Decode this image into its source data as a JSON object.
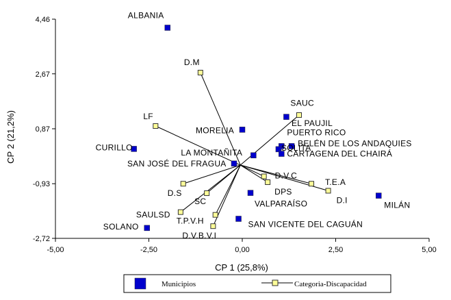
{
  "chart_data": {
    "type": "scatter",
    "title": "",
    "xlabel": "CP 1 (25,8%)",
    "ylabel": "CP 2 (21,2%)",
    "xlim": [
      -5.0,
      5.0
    ],
    "ylim": [
      -2.72,
      4.46
    ],
    "x_ticks": [
      "-5,00",
      "-2,50",
      "0,00",
      "2,50",
      "5,00"
    ],
    "y_ticks": [
      "4,46",
      "2,67",
      "0,87",
      "-0,93",
      "-2,72"
    ],
    "x_tick_values": [
      -5.0,
      -2.5,
      0.0,
      2.5,
      5.0
    ],
    "y_tick_values": [
      4.46,
      2.67,
      0.87,
      -0.93,
      -2.72
    ],
    "legend_position": "bottom",
    "colors": {
      "municipios": "#0000cc",
      "categoria": "#ffff99",
      "outline": "#333333"
    },
    "series": [
      {
        "name": "Municipios",
        "marker": "filled-square",
        "points": [
          {
            "label": "ALBANIA",
            "x": -2.0,
            "y": 4.18
          },
          {
            "label": "SAUC",
            "x": 1.18,
            "y": 1.26
          },
          {
            "label": "MORELIA",
            "x": 0.0,
            "y": 0.84
          },
          {
            "label": "CURILLO",
            "x": -2.9,
            "y": 0.21
          },
          {
            "label": "PUERTO RICO",
            "x": 1.05,
            "y": 0.3
          },
          {
            "label": "BELÉN DE LOS ANDAQUIES",
            "x": 1.32,
            "y": 0.3
          },
          {
            "label": "SOLITA",
            "x": 0.97,
            "y": 0.2
          },
          {
            "label": "CARTAGENA DEL CHAIRÁ",
            "x": 1.05,
            "y": 0.05
          },
          {
            "label": "LA MONTAÑITA",
            "x": 0.3,
            "y": 0.0
          },
          {
            "label": "SAN JOSÉ DEL FRAGUA",
            "x": -0.22,
            "y": -0.27
          },
          {
            "label": "VALPARAÍSO",
            "x": 0.22,
            "y": -1.23
          },
          {
            "label": "MILÁN",
            "x": 3.65,
            "y": -1.32
          },
          {
            "label": "SAN VICENTE DEL CAGUÁN",
            "x": -0.1,
            "y": -2.08
          },
          {
            "label": "SOLANO",
            "x": -2.55,
            "y": -2.38
          }
        ]
      },
      {
        "name": "Categoria-Discapacidad",
        "marker": "open-square-with-line",
        "origin": [
          -0.05,
          -0.32
        ],
        "points": [
          {
            "label": "D.M",
            "x": -1.12,
            "y": 2.71
          },
          {
            "label": "EL PAUJIL",
            "x": 1.52,
            "y": 1.32
          },
          {
            "label": "LF",
            "x": -2.32,
            "y": 0.96
          },
          {
            "label": "D.V.C",
            "x": 0.58,
            "y": -0.69
          },
          {
            "label": "DPS",
            "x": 0.68,
            "y": -0.88
          },
          {
            "label": "T.E.A",
            "x": 1.85,
            "y": -0.93
          },
          {
            "label": "D.I",
            "x": 2.3,
            "y": -1.16
          },
          {
            "label": "D.S",
            "x": -1.58,
            "y": -0.93
          },
          {
            "label": "SC",
            "x": -0.95,
            "y": -1.24
          },
          {
            "label": "SAULSD",
            "x": -1.65,
            "y": -1.86
          },
          {
            "label": "T.P.V.H",
            "x": -0.72,
            "y": -1.95
          },
          {
            "label": "D.V.B.V.I",
            "x": -0.78,
            "y": -2.32
          }
        ]
      }
    ]
  }
}
